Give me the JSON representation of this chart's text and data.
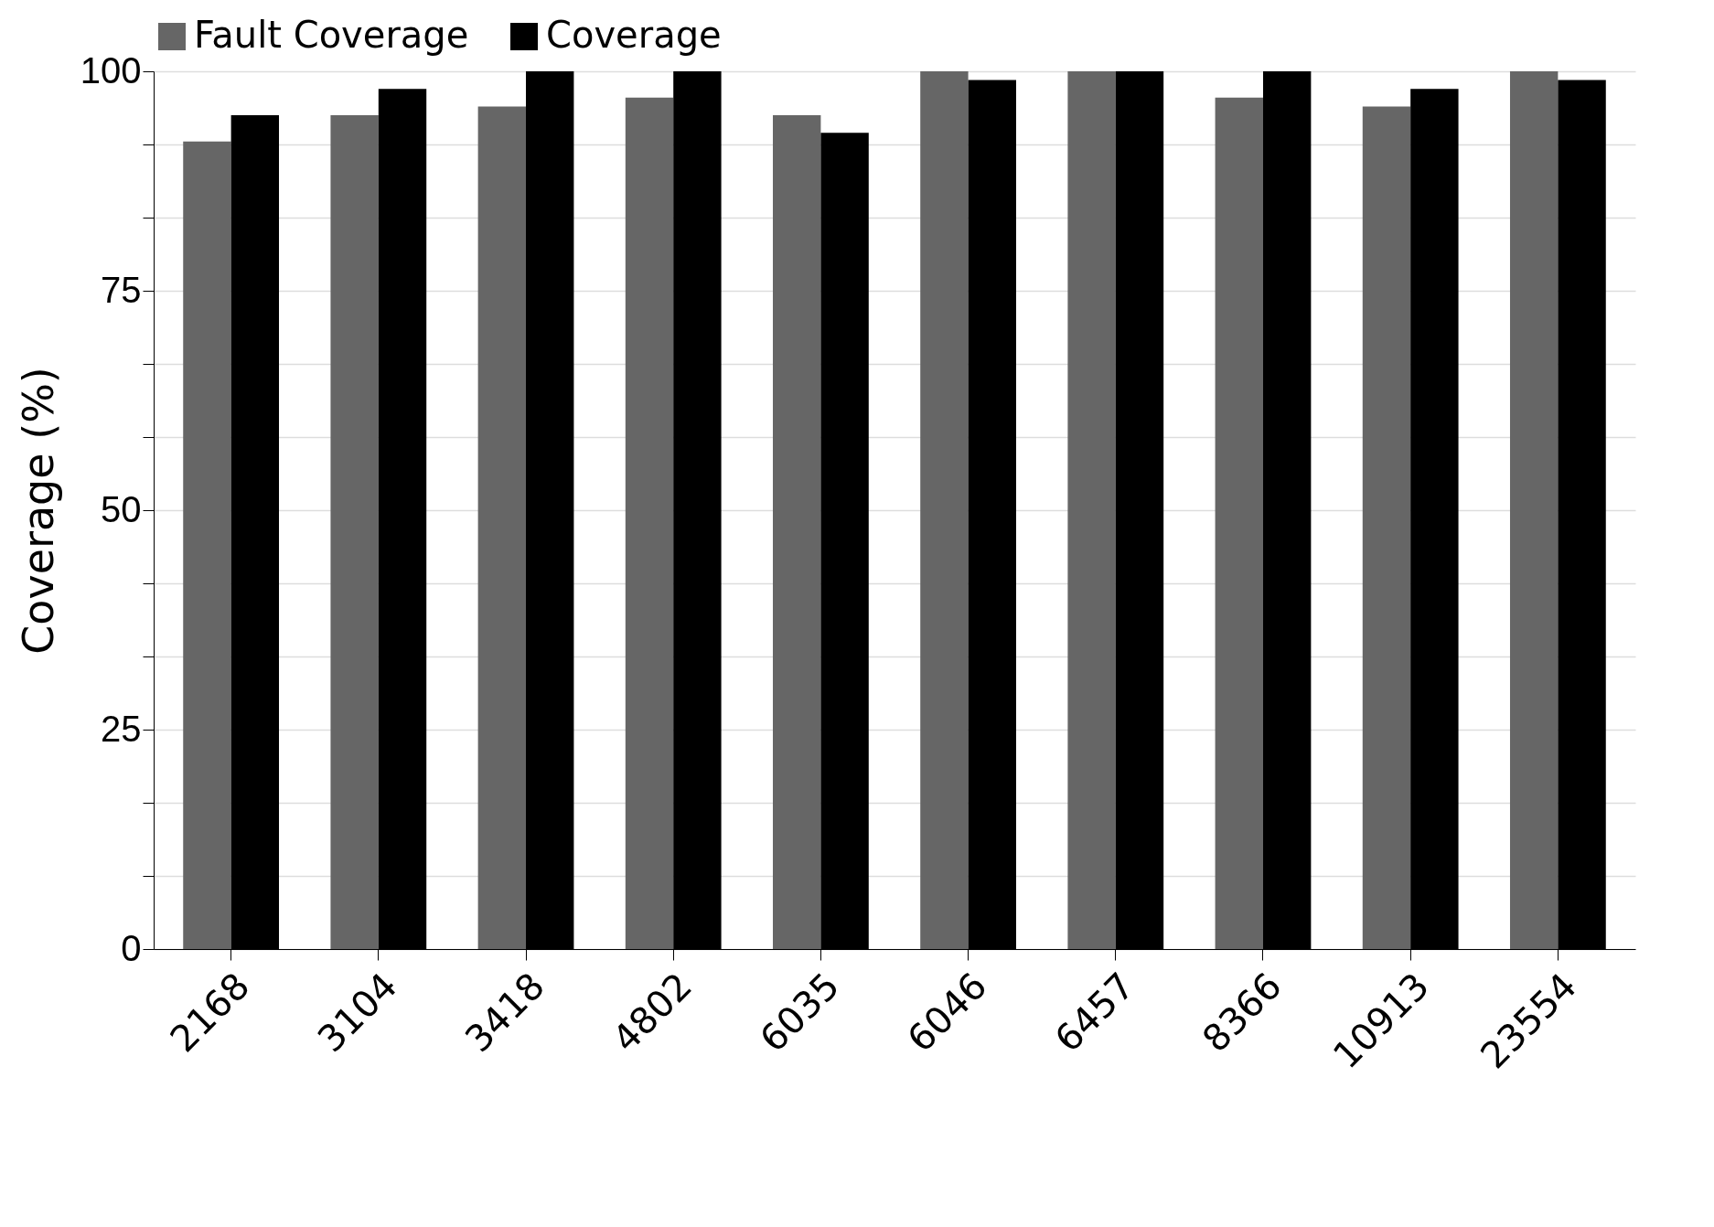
{
  "chart_data": {
    "type": "bar",
    "ylabel": "Coverage (%)",
    "categories": [
      "2168",
      "3104",
      "3418",
      "4802",
      "6035",
      "6046",
      "6457",
      "8366",
      "10913",
      "23554"
    ],
    "series": [
      {
        "name": "Fault Coverage",
        "color": "#666666",
        "values": [
          92,
          95,
          96,
          97,
          95,
          100,
          100,
          97,
          96,
          100
        ]
      },
      {
        "name": "Coverage",
        "color": "#000000",
        "values": [
          95,
          98,
          100,
          100,
          93,
          99,
          100,
          100,
          98,
          99
        ]
      }
    ],
    "ylim": [
      0,
      100
    ],
    "yticks": [
      0,
      {
        "value": 8.33,
        "label": null
      },
      {
        "value": 16.67,
        "label": null
      },
      25,
      {
        "value": 33.33,
        "label": null
      },
      {
        "value": 41.67,
        "label": null
      },
      50,
      {
        "value": 58.33,
        "label": null
      },
      {
        "value": 66.67,
        "label": null
      },
      75,
      {
        "value": 83.33,
        "label": null
      },
      {
        "value": 91.67,
        "label": null
      },
      100
    ],
    "grid": "y",
    "legend": "top"
  }
}
